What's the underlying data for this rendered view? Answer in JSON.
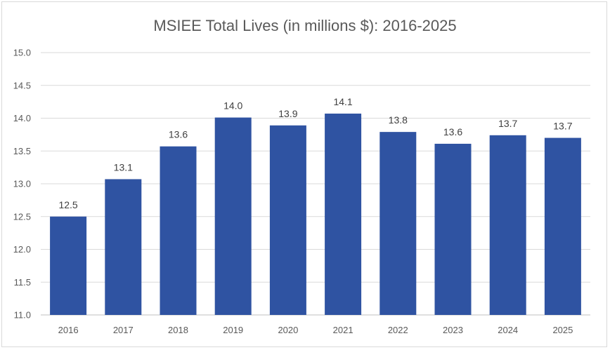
{
  "chart_data": {
    "type": "bar",
    "title": "MSIEE Total Lives (in millions $): 2016-2025",
    "categories": [
      "2016",
      "2017",
      "2018",
      "2019",
      "2020",
      "2021",
      "2022",
      "2023",
      "2024",
      "2025"
    ],
    "values": [
      12.5,
      13.07,
      13.57,
      14.01,
      13.89,
      14.07,
      13.79,
      13.61,
      13.74,
      13.7
    ],
    "data_labels": [
      "12.5",
      "13.1",
      "13.6",
      "14.0",
      "13.9",
      "14.1",
      "13.8",
      "13.6",
      "13.7",
      "13.7"
    ],
    "y_ticks": [
      "11.0",
      "11.5",
      "12.0",
      "12.5",
      "13.0",
      "13.5",
      "14.0",
      "14.5",
      "15.0"
    ],
    "ylim": [
      11.0,
      15.0
    ],
    "xlabel": "",
    "ylabel": "",
    "grid": true,
    "legend": "none",
    "bar_color": "#2f53a2",
    "grid_color": "#d9d9d9",
    "text_color": "#595959"
  }
}
